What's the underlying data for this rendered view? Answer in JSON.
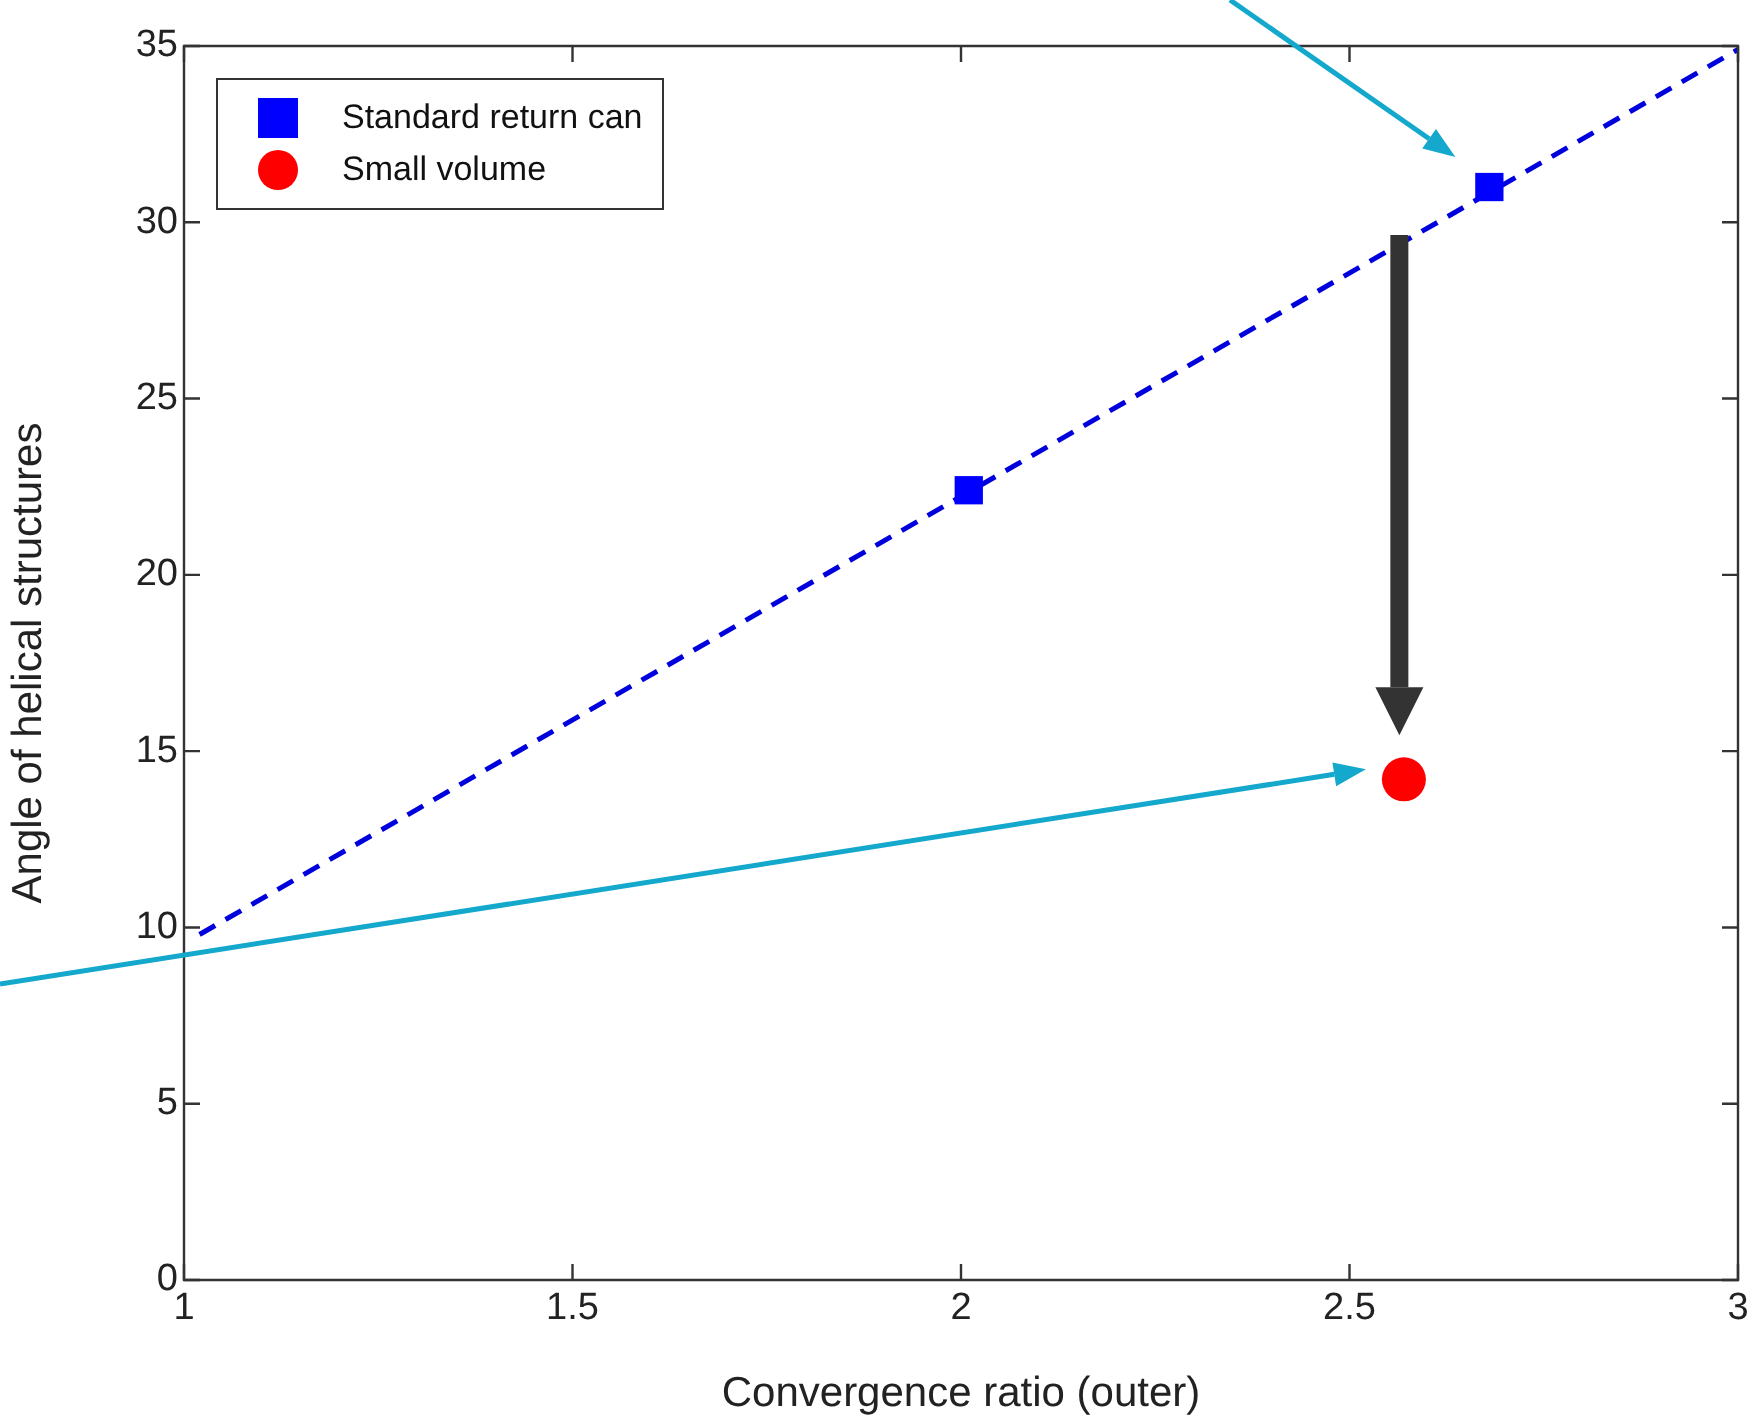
{
  "chart_data": {
    "type": "scatter",
    "xlabel": "Convergence ratio (outer)",
    "ylabel": "Angle of helical structures",
    "xlim": [
      1,
      3
    ],
    "xticks": [
      1,
      1.5,
      2,
      2.5,
      3
    ],
    "ylim": [
      0,
      35
    ],
    "yticks": [
      0,
      5,
      10,
      15,
      20,
      25,
      30,
      35
    ],
    "grid": false,
    "legend": "top left",
    "series": [
      {
        "name": "Standard return can",
        "color": "#0000ff",
        "marker": "square",
        "x": [
          2.01,
          2.68
        ],
        "values": [
          22.4,
          31.0
        ]
      },
      {
        "name": "Small volume",
        "color": "#ff0000",
        "marker": "circle",
        "x": [
          2.57
        ],
        "values": [
          14.2
        ]
      },
      {
        "type": "line",
        "color": "#0000dd",
        "line_style": "dashed",
        "marker": "none",
        "x": [
          1.02,
          3
        ],
        "values": [
          9.8,
          34.9
        ]
      }
    ]
  }
}
